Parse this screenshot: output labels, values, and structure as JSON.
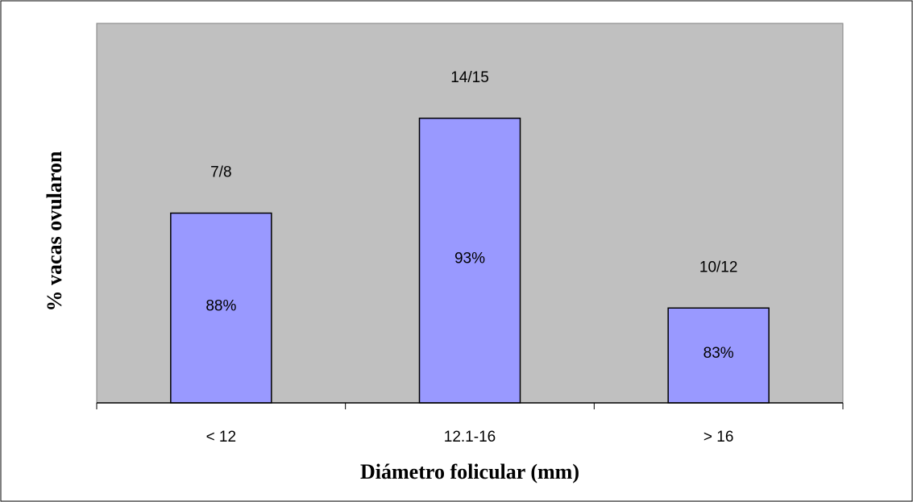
{
  "chart_data": {
    "type": "bar",
    "categories": [
      "< 12",
      "12.1-16",
      "> 16"
    ],
    "values": [
      88,
      93,
      83
    ],
    "value_labels": [
      "88%",
      "93%",
      "83%"
    ],
    "ratio_labels": [
      "7/8",
      "14/15",
      "10/12"
    ],
    "xlabel": "Diámetro folicular (mm)",
    "ylabel": "% vacas ovularon",
    "ylim": [
      78,
      98
    ],
    "grid": false,
    "legend": "none",
    "colors": {
      "bar_fill": "#9999ff",
      "plot_background": "#c0c0c0",
      "outline": "#000000"
    }
  }
}
